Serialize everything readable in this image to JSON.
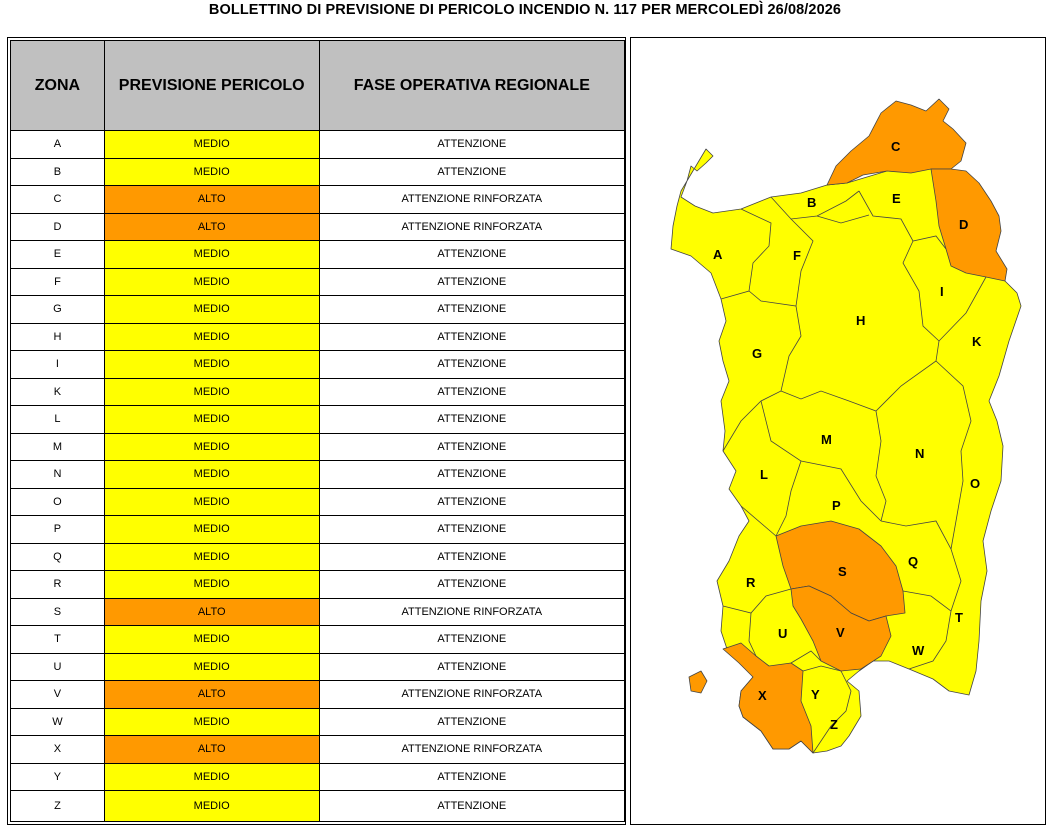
{
  "title": "BOLLETTINO DI PREVISIONE DI PERICOLO INCENDIO N. 117 PER MERCOLEDÌ 26/08/2026",
  "table": {
    "headers": {
      "zona": "ZONA",
      "previsione": "PREVISIONE PERICOLO",
      "fase": "FASE OPERATIVA REGIONALE"
    },
    "rows": [
      {
        "zona": "A",
        "previsione": "MEDIO",
        "fase": "ATTENZIONE"
      },
      {
        "zona": "B",
        "previsione": "MEDIO",
        "fase": "ATTENZIONE"
      },
      {
        "zona": "C",
        "previsione": "ALTO",
        "fase": "ATTENZIONE RINFORZATA"
      },
      {
        "zona": "D",
        "previsione": "ALTO",
        "fase": "ATTENZIONE RINFORZATA"
      },
      {
        "zona": "E",
        "previsione": "MEDIO",
        "fase": "ATTENZIONE"
      },
      {
        "zona": "F",
        "previsione": "MEDIO",
        "fase": "ATTENZIONE"
      },
      {
        "zona": "G",
        "previsione": "MEDIO",
        "fase": "ATTENZIONE"
      },
      {
        "zona": "H",
        "previsione": "MEDIO",
        "fase": "ATTENZIONE"
      },
      {
        "zona": "I",
        "previsione": "MEDIO",
        "fase": "ATTENZIONE"
      },
      {
        "zona": "K",
        "previsione": "MEDIO",
        "fase": "ATTENZIONE"
      },
      {
        "zona": "L",
        "previsione": "MEDIO",
        "fase": "ATTENZIONE"
      },
      {
        "zona": "M",
        "previsione": "MEDIO",
        "fase": "ATTENZIONE"
      },
      {
        "zona": "N",
        "previsione": "MEDIO",
        "fase": "ATTENZIONE"
      },
      {
        "zona": "O",
        "previsione": "MEDIO",
        "fase": "ATTENZIONE"
      },
      {
        "zona": "P",
        "previsione": "MEDIO",
        "fase": "ATTENZIONE"
      },
      {
        "zona": "Q",
        "previsione": "MEDIO",
        "fase": "ATTENZIONE"
      },
      {
        "zona": "R",
        "previsione": "MEDIO",
        "fase": "ATTENZIONE"
      },
      {
        "zona": "S",
        "previsione": "ALTO",
        "fase": "ATTENZIONE RINFORZATA"
      },
      {
        "zona": "T",
        "previsione": "MEDIO",
        "fase": "ATTENZIONE"
      },
      {
        "zona": "U",
        "previsione": "MEDIO",
        "fase": "ATTENZIONE"
      },
      {
        "zona": "V",
        "previsione": "ALTO",
        "fase": "ATTENZIONE RINFORZATA"
      },
      {
        "zona": "W",
        "previsione": "MEDIO",
        "fase": "ATTENZIONE"
      },
      {
        "zona": "X",
        "previsione": "ALTO",
        "fase": "ATTENZIONE RINFORZATA"
      },
      {
        "zona": "Y",
        "previsione": "MEDIO",
        "fase": "ATTENZIONE"
      },
      {
        "zona": "Z",
        "previsione": "MEDIO",
        "fase": "ATTENZIONE"
      }
    ]
  },
  "levels": {
    "MEDIO": "#ffff00",
    "ALTO": "#ff9900"
  },
  "map": {
    "labels": [
      "A",
      "B",
      "C",
      "D",
      "E",
      "F",
      "G",
      "H",
      "I",
      "K",
      "L",
      "M",
      "N",
      "O",
      "P",
      "Q",
      "R",
      "S",
      "T",
      "U",
      "V",
      "W",
      "X",
      "Y",
      "Z"
    ]
  }
}
